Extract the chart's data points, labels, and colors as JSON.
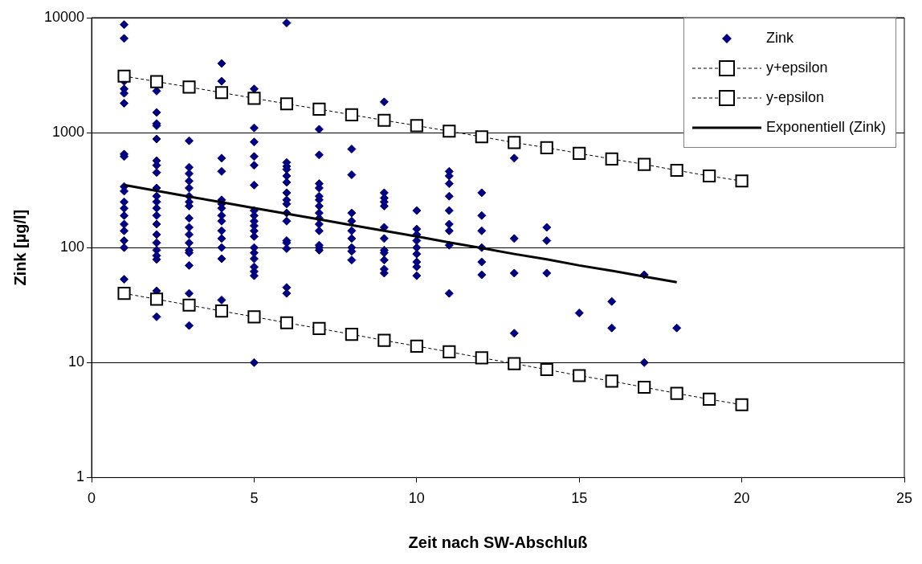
{
  "chart_data": {
    "type": "scatter",
    "xlabel": "Zeit nach SW-Abschluß",
    "ylabel": "Zink [µg/l]",
    "xlim": [
      0,
      25
    ],
    "xticks": [
      0,
      5,
      10,
      15,
      20,
      25
    ],
    "ylim": [
      1,
      10000
    ],
    "yticks": [
      1,
      10,
      100,
      1000,
      10000
    ],
    "log": "y",
    "grid": "y",
    "legend": "top right",
    "series": [
      {
        "name": "Zink",
        "type": "scatter",
        "marker": "diamond",
        "color": "#000080",
        "x": [
          1,
          1,
          1,
          1,
          1,
          1,
          1,
          1,
          1,
          1,
          1,
          1,
          1,
          1,
          1,
          1,
          1,
          1,
          2,
          2,
          2,
          2,
          2,
          2,
          2,
          2,
          2,
          2,
          2,
          2,
          2,
          2,
          2,
          2,
          2,
          2,
          2,
          2,
          2,
          3,
          3,
          3,
          3,
          3,
          3,
          3,
          3,
          3,
          3,
          3,
          3,
          3,
          3,
          3,
          3,
          3,
          4,
          4,
          4,
          4,
          4,
          4,
          4,
          4,
          4,
          4,
          4,
          4,
          4,
          4,
          5,
          5,
          5,
          5,
          5,
          5,
          5,
          5,
          5,
          5,
          5,
          5,
          5,
          5,
          5,
          5,
          5,
          5,
          5,
          6,
          6,
          6,
          6,
          6,
          6,
          6,
          6,
          6,
          6,
          6,
          6,
          6,
          6,
          6,
          6,
          7,
          7,
          7,
          7,
          7,
          7,
          7,
          7,
          7,
          7,
          7,
          7,
          7,
          7,
          8,
          8,
          8,
          8,
          8,
          8,
          8,
          8,
          8,
          9,
          9,
          9,
          9,
          9,
          9,
          9,
          9,
          9,
          9,
          9,
          9,
          10,
          10,
          10,
          10,
          10,
          10,
          10,
          10,
          10,
          11,
          11,
          11,
          11,
          11,
          11,
          11,
          11,
          11,
          12,
          12,
          12,
          12,
          12,
          12,
          13,
          13,
          13,
          13,
          14,
          14,
          14,
          15,
          16,
          16,
          17,
          17,
          18
        ],
        "values": [
          8700,
          6600,
          2800,
          2400,
          2200,
          1800,
          650,
          620,
          340,
          310,
          250,
          220,
          190,
          160,
          140,
          115,
          100,
          53,
          2300,
          1500,
          1200,
          1150,
          880,
          570,
          520,
          450,
          330,
          280,
          250,
          220,
          190,
          160,
          130,
          110,
          95,
          85,
          79,
          42,
          25,
          850,
          500,
          440,
          380,
          330,
          280,
          250,
          230,
          180,
          150,
          130,
          110,
          95,
          90,
          70,
          40,
          21,
          4000,
          2800,
          600,
          460,
          260,
          240,
          220,
          190,
          170,
          140,
          120,
          100,
          80,
          35,
          2400,
          1100,
          830,
          620,
          520,
          350,
          210,
          190,
          170,
          155,
          140,
          125,
          100,
          90,
          80,
          68,
          62,
          57,
          10,
          9000,
          550,
          510,
          480,
          420,
          370,
          300,
          260,
          240,
          200,
          170,
          115,
          110,
          98,
          45,
          40,
          1070,
          640,
          360,
          330,
          280,
          260,
          230,
          200,
          180,
          160,
          140,
          105,
          100,
          95,
          720,
          430,
          200,
          170,
          140,
          120,
          100,
          93,
          78,
          1850,
          300,
          270,
          250,
          230,
          150,
          120,
          95,
          90,
          78,
          65,
          60,
          210,
          145,
          130,
          115,
          100,
          88,
          75,
          68,
          57,
          460,
          420,
          360,
          280,
          210,
          160,
          140,
          105,
          40,
          300,
          190,
          140,
          100,
          75,
          58,
          600,
          120,
          60,
          18,
          150,
          115,
          60,
          27,
          34,
          20,
          58,
          10,
          20
        ]
      },
      {
        "name": "y+epsilon",
        "type": "line",
        "marker": "square",
        "line_style": "dashed",
        "color": "#000000",
        "x": [
          1,
          2,
          3,
          4,
          5,
          6,
          7,
          8,
          9,
          10,
          11,
          12,
          13,
          14,
          15,
          16,
          17,
          18,
          19,
          20
        ],
        "values": [
          3100,
          2780,
          2490,
          2230,
          1990,
          1780,
          1600,
          1430,
          1280,
          1150,
          1030,
          920,
          820,
          740,
          660,
          590,
          530,
          470,
          420,
          380
        ]
      },
      {
        "name": "y-epsilon",
        "type": "line",
        "marker": "square",
        "line_style": "dashed",
        "color": "#000000",
        "x": [
          1,
          2,
          3,
          4,
          5,
          6,
          7,
          8,
          9,
          10,
          11,
          12,
          13,
          14,
          15,
          16,
          17,
          18,
          19,
          20
        ],
        "values": [
          40,
          35.6,
          31.6,
          28.1,
          25,
          22.2,
          19.8,
          17.6,
          15.6,
          13.9,
          12.4,
          11,
          9.8,
          8.7,
          7.7,
          6.9,
          6.1,
          5.4,
          4.8,
          4.3
        ]
      },
      {
        "name": "Exponentiell (Zink)",
        "type": "line",
        "marker": "none",
        "line_style": "solid",
        "color": "#000000",
        "x": [
          1,
          2,
          3,
          4,
          5,
          6,
          7,
          8,
          9,
          10,
          11,
          12,
          13,
          14,
          15,
          16,
          17,
          18
        ],
        "values": [
          350,
          312,
          278,
          248,
          221,
          197,
          176,
          157,
          140,
          125,
          111,
          99,
          88,
          79,
          70,
          63,
          56,
          50
        ]
      }
    ]
  }
}
